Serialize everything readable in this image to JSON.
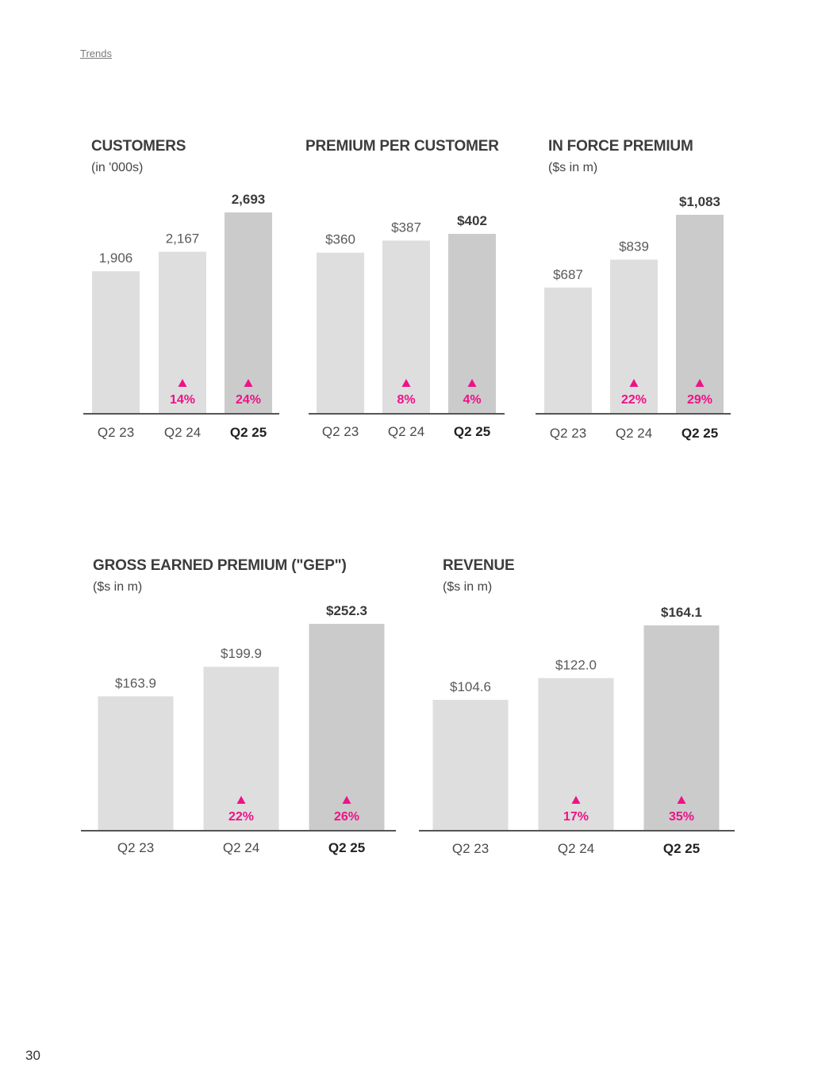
{
  "header": {
    "trends_link": "Trends"
  },
  "footer": {
    "page_number": "30"
  },
  "colors": {
    "bar_prior": "#dedede",
    "bar_current": "#cbcbcb",
    "growth": "#ee1288",
    "axis": "#555555"
  },
  "chart_data": [
    {
      "type": "bar",
      "title": "CUSTOMERS",
      "subtitle": "(in '000s)",
      "categories": [
        "Q2 23",
        "Q2 24",
        "Q2 25"
      ],
      "values": [
        1906,
        2167,
        2693
      ],
      "value_labels": [
        "1,906",
        "2,167",
        "2,693"
      ],
      "growth": [
        "",
        "14%",
        "24%"
      ],
      "highlight_index": 2
    },
    {
      "type": "bar",
      "title": "PREMIUM PER CUSTOMER",
      "subtitle": "",
      "categories": [
        "Q2 23",
        "Q2 24",
        "Q2 25"
      ],
      "values": [
        360,
        387,
        402
      ],
      "value_labels": [
        "$360",
        "$387",
        "$402"
      ],
      "growth": [
        "",
        "8%",
        "4%"
      ],
      "highlight_index": 2
    },
    {
      "type": "bar",
      "title": "IN FORCE PREMIUM",
      "subtitle": "($s in m)",
      "categories": [
        "Q2 23",
        "Q2 24",
        "Q2 25"
      ],
      "values": [
        687,
        839,
        1083
      ],
      "value_labels": [
        "$687",
        "$839",
        "$1,083"
      ],
      "growth": [
        "",
        "22%",
        "29%"
      ],
      "highlight_index": 2
    },
    {
      "type": "bar",
      "title": "GROSS EARNED PREMIUM (\"GEP\")",
      "subtitle": "($s in m)",
      "categories": [
        "Q2 23",
        "Q2 24",
        "Q2 25"
      ],
      "values": [
        163.9,
        199.9,
        252.3
      ],
      "value_labels": [
        "$163.9",
        "$199.9",
        "$252.3"
      ],
      "growth": [
        "",
        "22%",
        "26%"
      ],
      "highlight_index": 2
    },
    {
      "type": "bar",
      "title": "REVENUE",
      "subtitle": "($s in m)",
      "categories": [
        "Q2 23",
        "Q2 24",
        "Q2 25"
      ],
      "values": [
        104.6,
        122.0,
        164.1
      ],
      "value_labels": [
        "$104.6",
        "$122.0",
        "$164.1"
      ],
      "growth": [
        "",
        "17%",
        "35%"
      ],
      "highlight_index": 2
    }
  ]
}
